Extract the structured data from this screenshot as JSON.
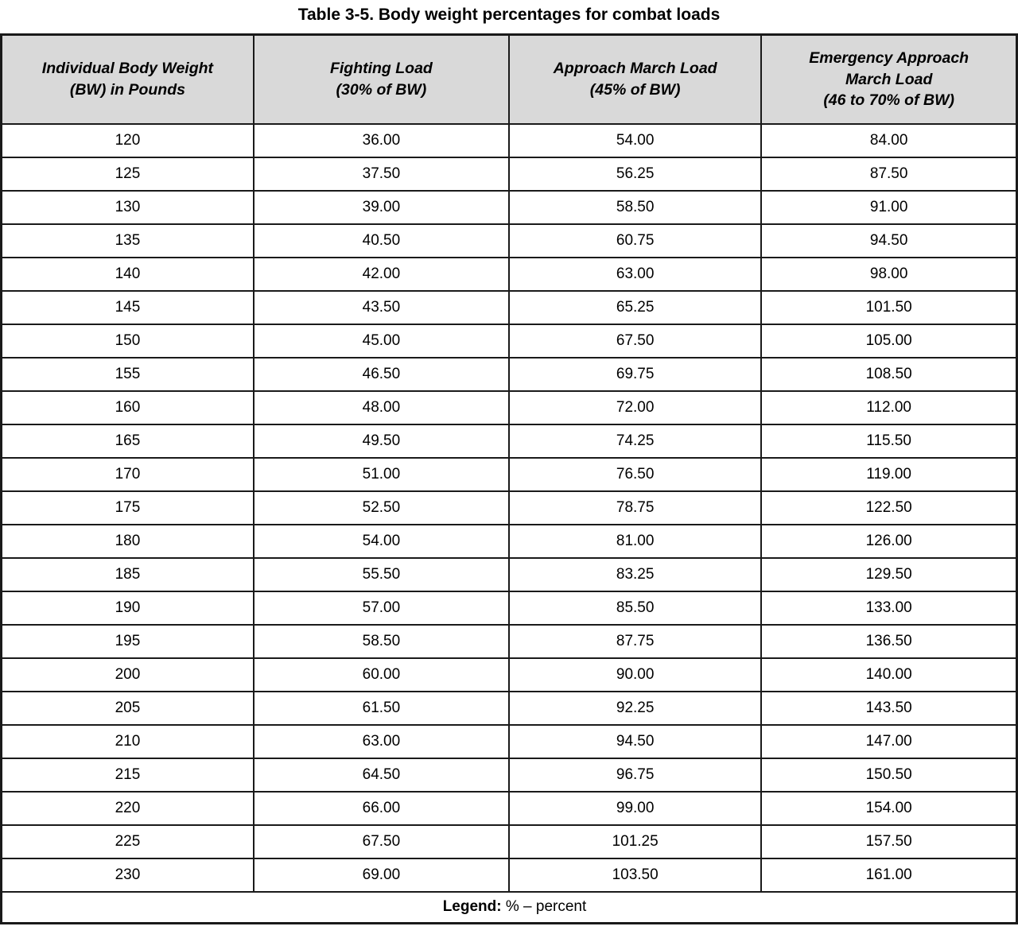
{
  "title": "Table 3-5. Body weight percentages for combat loads",
  "table": {
    "headers": [
      "Individual Body Weight\n(BW) in Pounds",
      "Fighting Load\n(30% of BW)",
      "Approach March Load\n(45% of BW)",
      "Emergency Approach\nMarch Load\n(46 to 70% of BW)"
    ],
    "rows": [
      [
        "120",
        "36.00",
        "54.00",
        "84.00"
      ],
      [
        "125",
        "37.50",
        "56.25",
        "87.50"
      ],
      [
        "130",
        "39.00",
        "58.50",
        "91.00"
      ],
      [
        "135",
        "40.50",
        "60.75",
        "94.50"
      ],
      [
        "140",
        "42.00",
        "63.00",
        "98.00"
      ],
      [
        "145",
        "43.50",
        "65.25",
        "101.50"
      ],
      [
        "150",
        "45.00",
        "67.50",
        "105.00"
      ],
      [
        "155",
        "46.50",
        "69.75",
        "108.50"
      ],
      [
        "160",
        "48.00",
        "72.00",
        "112.00"
      ],
      [
        "165",
        "49.50",
        "74.25",
        "115.50"
      ],
      [
        "170",
        "51.00",
        "76.50",
        "119.00"
      ],
      [
        "175",
        "52.50",
        "78.75",
        "122.50"
      ],
      [
        "180",
        "54.00",
        "81.00",
        "126.00"
      ],
      [
        "185",
        "55.50",
        "83.25",
        "129.50"
      ],
      [
        "190",
        "57.00",
        "85.50",
        "133.00"
      ],
      [
        "195",
        "58.50",
        "87.75",
        "136.50"
      ],
      [
        "200",
        "60.00",
        "90.00",
        "140.00"
      ],
      [
        "205",
        "61.50",
        "92.25",
        "143.50"
      ],
      [
        "210",
        "63.00",
        "94.50",
        "147.00"
      ],
      [
        "215",
        "64.50",
        "96.75",
        "150.50"
      ],
      [
        "220",
        "66.00",
        "99.00",
        "154.00"
      ],
      [
        "225",
        "67.50",
        "101.25",
        "157.50"
      ],
      [
        "230",
        "69.00",
        "103.50",
        "161.00"
      ]
    ],
    "legend_label": "Legend:",
    "legend_text": "% – percent"
  },
  "colors": {
    "header_bg": "#d9d9d9",
    "border": "#1a1a1a",
    "text": "#000000",
    "page_bg": "#ffffff"
  }
}
